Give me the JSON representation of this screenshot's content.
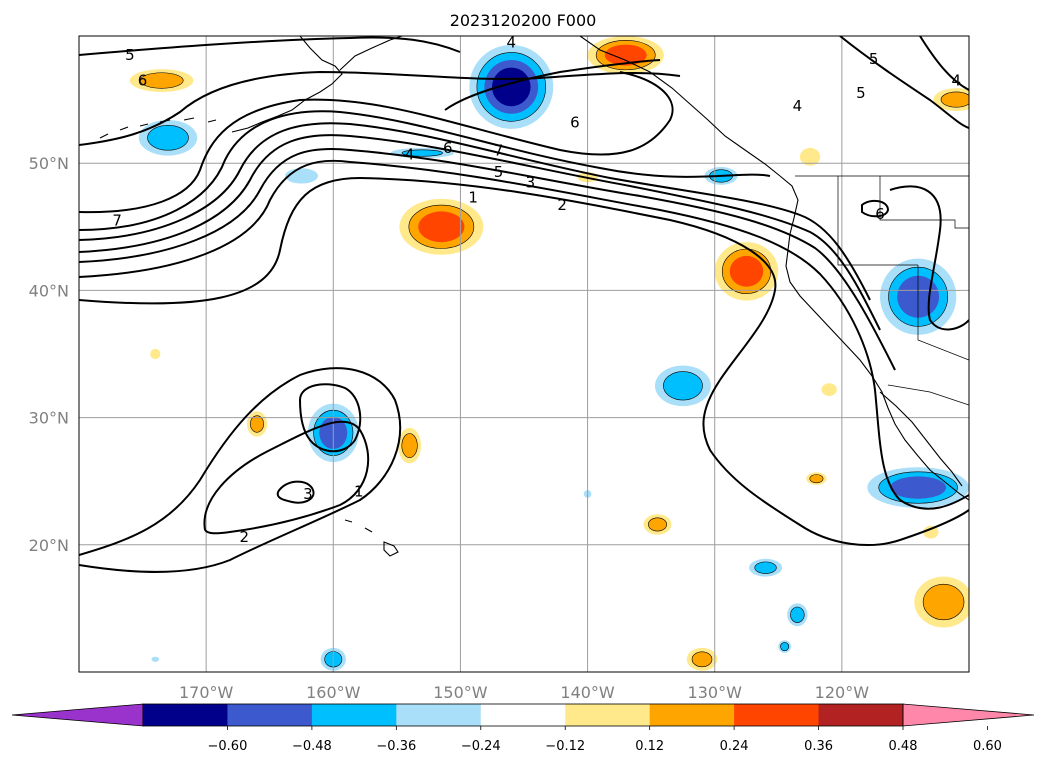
{
  "title": "2023120200 F000",
  "map": {
    "lon_range": [
      -180,
      -110
    ],
    "lat_range": [
      10,
      60
    ],
    "gridline_color": "#9e9e9e",
    "lon_ticks": [
      {
        "lon": -170,
        "label": "170°W"
      },
      {
        "lon": -160,
        "label": "160°W"
      },
      {
        "lon": -150,
        "label": "150°W"
      },
      {
        "lon": -140,
        "label": "140°W"
      },
      {
        "lon": -130,
        "label": "130°W"
      },
      {
        "lon": -120,
        "label": "120°W"
      }
    ],
    "lat_ticks": [
      {
        "lat": 50,
        "label": "50°N"
      },
      {
        "lat": 40,
        "label": "40°N"
      },
      {
        "lat": 30,
        "label": "30°N"
      },
      {
        "lat": 20,
        "label": "20°N"
      }
    ],
    "contour_labels": [
      {
        "text": "5",
        "lon": -176,
        "lat": 58.5
      },
      {
        "text": "6",
        "lon": -175,
        "lat": 56.5
      },
      {
        "text": "7",
        "lon": -177,
        "lat": 45.5
      },
      {
        "text": "4",
        "lon": -146,
        "lat": 59.5
      },
      {
        "text": "6",
        "lon": -151,
        "lat": 51.2
      },
      {
        "text": "7",
        "lon": -147,
        "lat": 51.0
      },
      {
        "text": "4",
        "lon": -154,
        "lat": 50.7
      },
      {
        "text": "5",
        "lon": -147,
        "lat": 49.3
      },
      {
        "text": "3",
        "lon": -144.5,
        "lat": 48.5
      },
      {
        "text": "1",
        "lon": -149,
        "lat": 47.3
      },
      {
        "text": "2",
        "lon": -142,
        "lat": 46.7
      },
      {
        "text": "6",
        "lon": -141,
        "lat": 53.2
      },
      {
        "text": "5",
        "lon": -117.5,
        "lat": 58.2
      },
      {
        "text": "5",
        "lon": -118.5,
        "lat": 55.5
      },
      {
        "text": "4",
        "lon": -111,
        "lat": 56.5
      },
      {
        "text": "4",
        "lon": -123.5,
        "lat": 54.5
      },
      {
        "text": "6",
        "lon": -117,
        "lat": 46.0
      },
      {
        "text": "3",
        "lon": -162,
        "lat": 24.0
      },
      {
        "text": "1",
        "lon": -158,
        "lat": 24.2
      },
      {
        "text": "2",
        "lon": -167,
        "lat": 20.6
      }
    ],
    "positive_blobs": [
      {
        "lon": -173.5,
        "lat": 56.5,
        "rx": 2.5,
        "ry": 0.9,
        "level": 0.28
      },
      {
        "lon": -151.5,
        "lat": 45.0,
        "rx": 3.3,
        "ry": 2.2,
        "level": 0.4
      },
      {
        "lon": -137.0,
        "lat": 58.5,
        "rx": 3.0,
        "ry": 1.5,
        "level": 0.4
      },
      {
        "lon": -127.5,
        "lat": 41.5,
        "rx": 2.5,
        "ry": 2.3,
        "level": 0.38
      },
      {
        "lon": -154.0,
        "lat": 27.8,
        "rx": 0.9,
        "ry": 1.4,
        "level": 0.28
      },
      {
        "lon": -166.0,
        "lat": 29.5,
        "rx": 0.8,
        "ry": 1.0,
        "level": 0.26
      },
      {
        "lon": -134.5,
        "lat": 21.6,
        "rx": 1.1,
        "ry": 0.8,
        "level": 0.26
      },
      {
        "lon": -131.0,
        "lat": 11.0,
        "rx": 1.2,
        "ry": 0.9,
        "level": 0.26
      },
      {
        "lon": -112.0,
        "lat": 15.5,
        "rx": 2.3,
        "ry": 2.0,
        "level": 0.3
      },
      {
        "lon": -111.0,
        "lat": 55.0,
        "rx": 1.8,
        "ry": 0.9,
        "level": 0.27
      },
      {
        "lon": -122.5,
        "lat": 50.5,
        "rx": 0.8,
        "ry": 0.7,
        "level": 0.2
      },
      {
        "lon": -140.0,
        "lat": 48.9,
        "rx": 0.8,
        "ry": 0.4,
        "level": 0.18
      },
      {
        "lon": -174.0,
        "lat": 35.0,
        "rx": 0.4,
        "ry": 0.4,
        "level": 0.18
      },
      {
        "lon": -122.0,
        "lat": 25.2,
        "rx": 0.8,
        "ry": 0.5,
        "level": 0.26
      },
      {
        "lon": -121.0,
        "lat": 32.2,
        "rx": 0.6,
        "ry": 0.5,
        "level": 0.18
      },
      {
        "lon": -113.0,
        "lat": 21.0,
        "rx": 0.6,
        "ry": 0.5,
        "level": 0.2
      }
    ],
    "negative_blobs": [
      {
        "lon": -146.0,
        "lat": 56.0,
        "rx": 3.3,
        "ry": 3.3,
        "level": -0.5
      },
      {
        "lon": -173.0,
        "lat": 52.0,
        "rx": 2.3,
        "ry": 1.4,
        "level": -0.3
      },
      {
        "lon": -114.0,
        "lat": 39.5,
        "rx": 3.0,
        "ry": 3.0,
        "level": -0.4
      },
      {
        "lon": -160.0,
        "lat": 28.8,
        "rx": 2.0,
        "ry": 2.3,
        "level": -0.4
      },
      {
        "lon": -132.5,
        "lat": 32.5,
        "rx": 2.2,
        "ry": 1.6,
        "level": -0.3
      },
      {
        "lon": -114.0,
        "lat": 24.5,
        "rx": 4.0,
        "ry": 1.6,
        "level": -0.4
      },
      {
        "lon": -162.5,
        "lat": 49.0,
        "rx": 1.3,
        "ry": 0.6,
        "level": -0.2
      },
      {
        "lon": -153.0,
        "lat": 50.8,
        "rx": 2.5,
        "ry": 0.4,
        "level": -0.25
      },
      {
        "lon": -129.5,
        "lat": 49.0,
        "rx": 1.3,
        "ry": 0.7,
        "level": -0.3
      },
      {
        "lon": -126.0,
        "lat": 18.2,
        "rx": 1.3,
        "ry": 0.7,
        "level": -0.26
      },
      {
        "lon": -123.5,
        "lat": 14.5,
        "rx": 0.8,
        "ry": 0.9,
        "level": -0.28
      },
      {
        "lon": -160.0,
        "lat": 11.0,
        "rx": 1.0,
        "ry": 0.9,
        "level": -0.28
      },
      {
        "lon": -124.5,
        "lat": 12.0,
        "rx": 0.5,
        "ry": 0.5,
        "level": -0.26
      },
      {
        "lon": -140.0,
        "lat": 24.0,
        "rx": 0.3,
        "ry": 0.3,
        "level": -0.2
      },
      {
        "lon": -174.0,
        "lat": 11.0,
        "rx": 0.3,
        "ry": 0.2,
        "level": -0.2
      }
    ]
  },
  "colorbar": {
    "colors": [
      "#9933cc",
      "#00008b",
      "#3c5acd",
      "#00bfff",
      "#aadff9",
      "#ffffff",
      "#ffe98a",
      "#ffa500",
      "#ff4500",
      "#b22222",
      "#ff88aa"
    ],
    "ticks": [
      "−0.60",
      "−0.48",
      "−0.36",
      "−0.24",
      "−0.12",
      "0.12",
      "0.24",
      "0.36",
      "0.48",
      "0.60"
    ]
  }
}
